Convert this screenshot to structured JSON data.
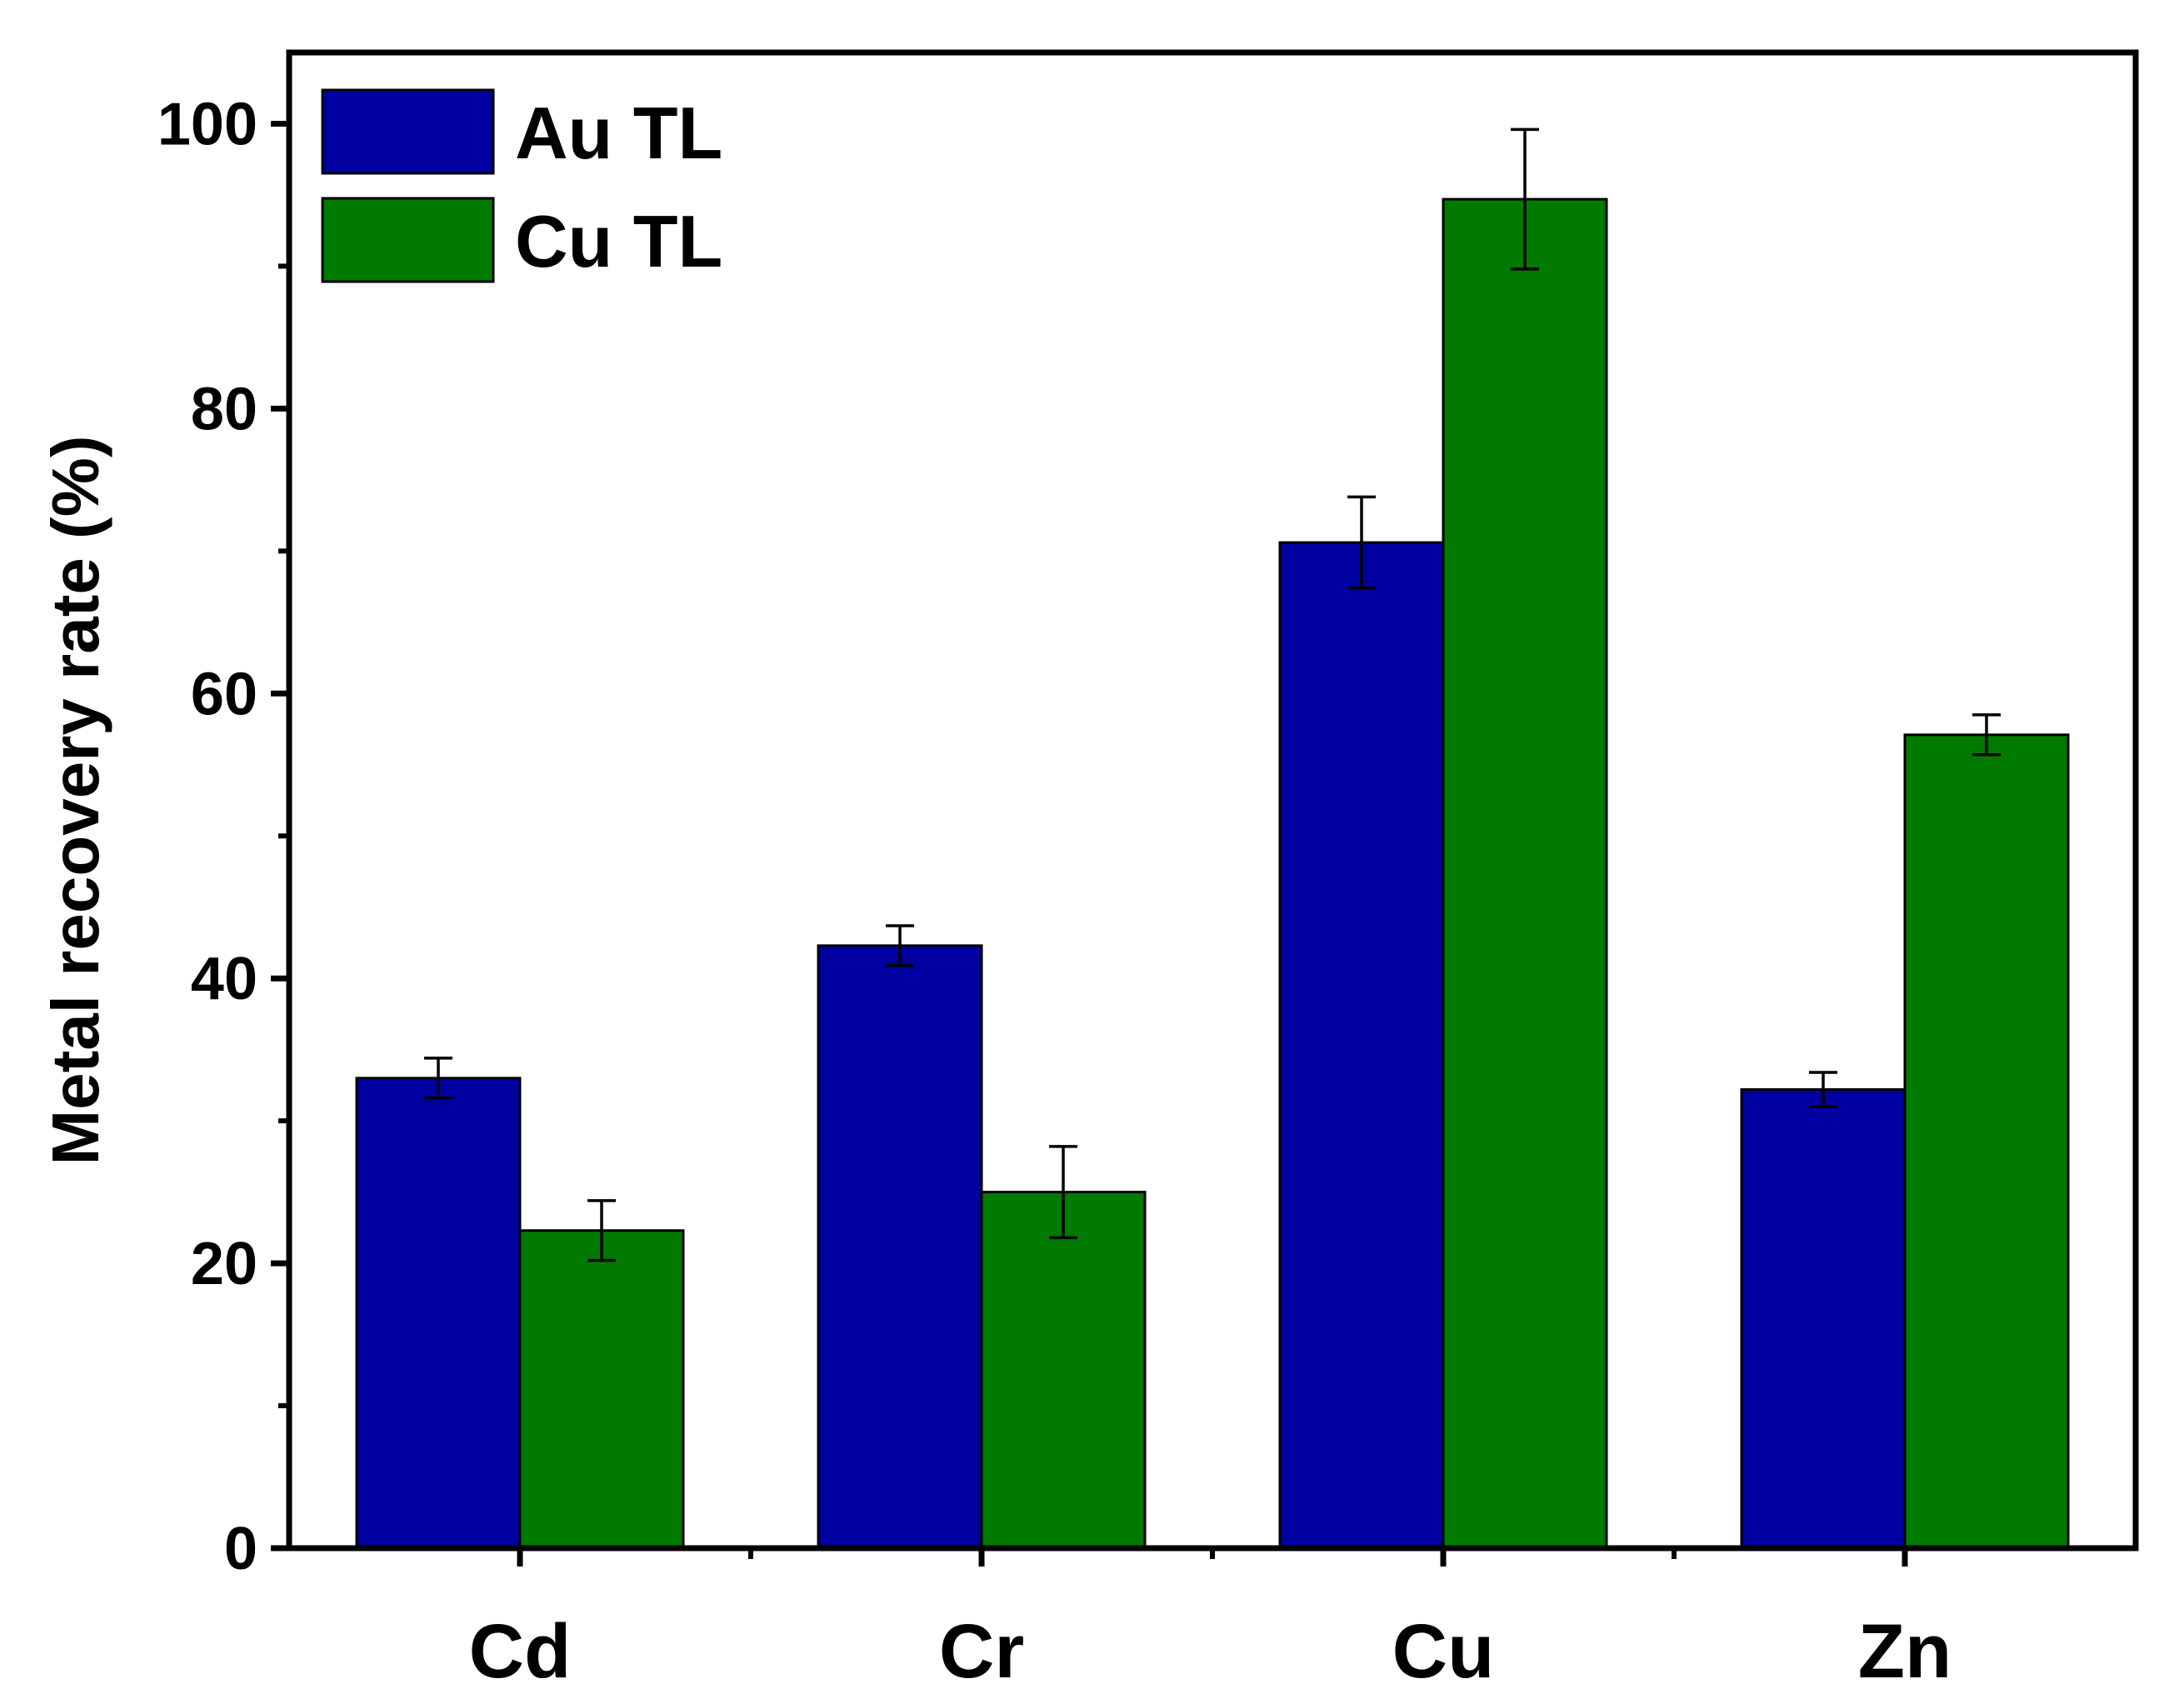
{
  "chart_data": {
    "type": "bar",
    "title": "",
    "xlabel": "",
    "ylabel": "Metal recovery rate (%)",
    "ylim": [
      0,
      105
    ],
    "yticks": [
      0,
      20,
      40,
      60,
      80,
      100
    ],
    "categories": [
      "Cd",
      "Cr",
      "Cu",
      "Zn"
    ],
    "series": [
      {
        "name": "Au TL",
        "color": "#0000a0",
        "values": [
          33.0,
          42.3,
          70.6,
          32.2
        ],
        "errors": [
          1.4,
          1.4,
          3.2,
          1.2
        ]
      },
      {
        "name": "Cu TL",
        "color": "#007a00",
        "values": [
          22.3,
          25.0,
          94.7,
          57.1
        ],
        "errors": [
          2.1,
          3.2,
          4.9,
          1.4
        ]
      }
    ],
    "grid": false,
    "legend_position": "top-left",
    "error_bars": true
  }
}
